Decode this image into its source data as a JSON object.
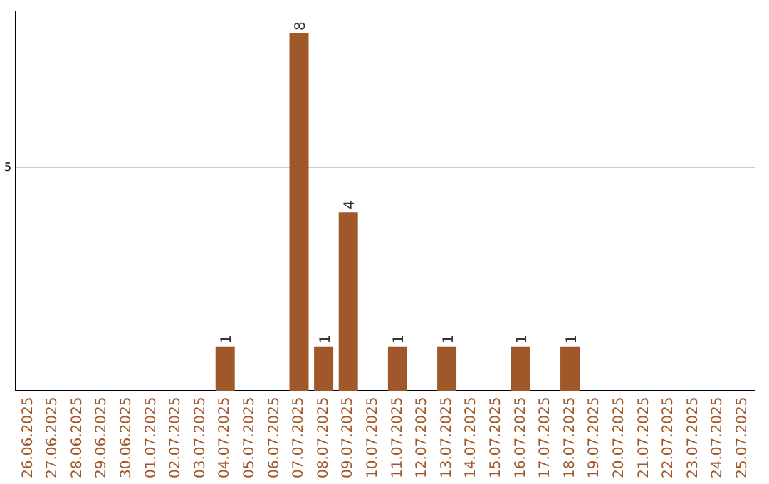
{
  "chart_data": {
    "type": "bar",
    "categories": [
      "26.06.2025",
      "27.06.2025",
      "28.06.2025",
      "29.06.2025",
      "30.06.2025",
      "01.07.2025",
      "02.07.2025",
      "03.07.2025",
      "04.07.2025",
      "05.07.2025",
      "06.07.2025",
      "07.07.2025",
      "08.07.2025",
      "09.07.2025",
      "10.07.2025",
      "11.07.2025",
      "12.07.2025",
      "13.07.2025",
      "14.07.2025",
      "15.07.2025",
      "16.07.2025",
      "17.07.2025",
      "18.07.2025",
      "19.07.2025",
      "20.07.2025",
      "21.07.2025",
      "22.07.2025",
      "23.07.2025",
      "24.07.2025",
      "25.07.2025"
    ],
    "values": [
      0,
      0,
      0,
      0,
      0,
      0,
      0,
      0,
      1,
      0,
      0,
      8,
      1,
      4,
      0,
      1,
      0,
      1,
      0,
      0,
      1,
      0,
      1,
      0,
      0,
      0,
      0,
      0,
      0,
      0
    ],
    "value_labels": [
      null,
      null,
      null,
      null,
      null,
      null,
      null,
      null,
      "1",
      null,
      null,
      "8",
      "1",
      "4",
      null,
      "1",
      null,
      "1",
      null,
      null,
      "1",
      null,
      "1",
      null,
      null,
      null,
      null,
      null,
      null,
      null
    ],
    "color": "#a0572a",
    "ylim": [
      0,
      8.5
    ],
    "yticks": [
      5
    ],
    "grid": "y",
    "legend": false
  }
}
